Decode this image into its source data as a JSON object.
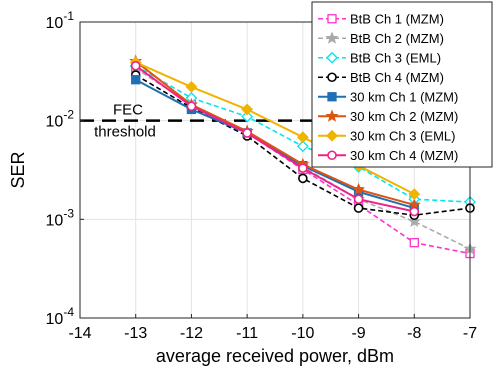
{
  "chart_data": {
    "type": "line",
    "title": "",
    "xlabel": "average received power, dBm",
    "ylabel": "SER",
    "x": [
      -13,
      -12,
      -11,
      -10,
      -9,
      -8,
      -7
    ],
    "xlim": [
      -14,
      -7
    ],
    "ylim": [
      0.0001,
      0.1
    ],
    "yscale": "log",
    "xticks": [
      -14,
      -13,
      -12,
      -11,
      -10,
      -9,
      -8,
      -7
    ],
    "xtick_labels": [
      "-14",
      "-13",
      "-12",
      "-11",
      "-10",
      "-9",
      "-8",
      "-7"
    ],
    "yticks": [
      0.0001,
      0.001,
      0.01,
      0.1
    ],
    "ytick_labels": [
      {
        "base": "10",
        "exp": "-4"
      },
      {
        "base": "10",
        "exp": "-3"
      },
      {
        "base": "10",
        "exp": "-2"
      },
      {
        "base": "10",
        "exp": "-1"
      }
    ],
    "grid": true,
    "legend_position": "top-right",
    "threshold": {
      "value": 0.01,
      "label_line1": "FEC",
      "label_line2": "threshold"
    },
    "series": [
      {
        "name": "BtB Ch 1 (MZM)",
        "color": "#ff33cc",
        "dash": "dashed",
        "marker": "square-open",
        "x": [
          -13,
          -12,
          -11,
          -10,
          -9,
          -8,
          -7
        ],
        "values": [
          0.034,
          0.0145,
          0.0075,
          0.0032,
          0.0014,
          0.00058,
          0.00045
        ]
      },
      {
        "name": "BtB Ch 2 (MZM)",
        "color": "#aaaaaa",
        "dash": "dashed",
        "marker": "star",
        "x": [
          -13,
          -12,
          -11,
          -10,
          -9,
          -8,
          -7
        ],
        "values": [
          0.034,
          0.0145,
          0.0078,
          0.0034,
          0.0016,
          0.00095,
          0.0005
        ]
      },
      {
        "name": "BtB Ch 3 (EML)",
        "color": "#00e5ee",
        "dash": "dashed",
        "marker": "diamond-open",
        "x": [
          -13,
          -12,
          -11,
          -10,
          -9,
          -8,
          -7
        ],
        "values": [
          0.036,
          0.017,
          0.011,
          0.0055,
          0.0034,
          0.0016,
          0.0015
        ]
      },
      {
        "name": "BtB Ch 4 (MZM)",
        "color": "#000000",
        "dash": "dashed",
        "marker": "circle-open",
        "x": [
          -13,
          -12,
          -11,
          -10,
          -9,
          -8,
          -7
        ],
        "values": [
          0.029,
          0.0135,
          0.007,
          0.0026,
          0.0013,
          0.0011,
          0.0013
        ]
      },
      {
        "name": "30 km Ch 1 (MZM)",
        "color": "#1f6fb4",
        "dash": "solid",
        "marker": "square-filled",
        "x": [
          -13,
          -12,
          -11,
          -10,
          -9,
          -8
        ],
        "values": [
          0.026,
          0.013,
          0.0075,
          0.0035,
          0.0019,
          0.0013
        ]
      },
      {
        "name": "30 km Ch 2 (MZM)",
        "color": "#dd5511",
        "dash": "solid",
        "marker": "star",
        "x": [
          -13,
          -12,
          -11,
          -10,
          -9,
          -8
        ],
        "values": [
          0.04,
          0.0145,
          0.0078,
          0.0036,
          0.002,
          0.0014
        ]
      },
      {
        "name": "30 km Ch 3 (EML)",
        "color": "#f0b400",
        "dash": "solid",
        "marker": "diamond-filled",
        "x": [
          -13,
          -12,
          -11,
          -10,
          -9,
          -8
        ],
        "values": [
          0.039,
          0.022,
          0.013,
          0.0068,
          0.0035,
          0.0018
        ]
      },
      {
        "name": "30 km Ch 4 (MZM)",
        "color": "#ee2288",
        "dash": "solid",
        "marker": "circle-open",
        "x": [
          -13,
          -12,
          -11,
          -10,
          -9,
          -8
        ],
        "values": [
          0.036,
          0.014,
          0.0075,
          0.0033,
          0.0016,
          0.0012
        ]
      }
    ]
  }
}
